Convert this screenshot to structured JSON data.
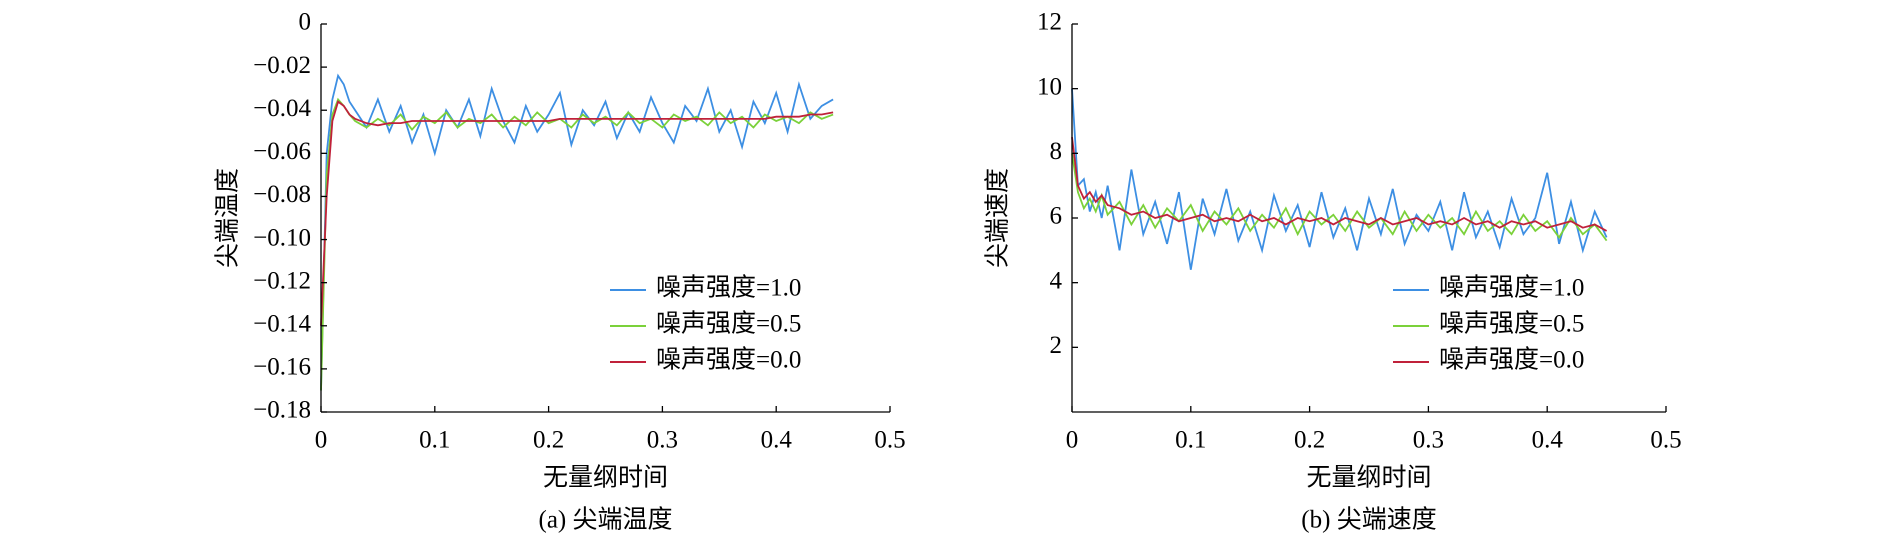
{
  "chart_data": [
    {
      "type": "line",
      "xlabel": "无量纲时间",
      "ylabel": "尖端温度",
      "caption": "(a) 尖端温度",
      "xlim": [
        0,
        0.5
      ],
      "ylim": [
        -0.18,
        0
      ],
      "xticks": [
        0,
        0.1,
        0.2,
        0.3,
        0.4,
        0.5
      ],
      "yticks": [
        {
          "value": -0.18,
          "label": "−0.18"
        },
        {
          "value": -0.16,
          "label": "−0.16"
        },
        {
          "value": -0.14,
          "label": "−0.14"
        },
        {
          "value": -0.12,
          "label": "−0.12"
        },
        {
          "value": -0.1,
          "label": "−0.10"
        },
        {
          "value": -0.08,
          "label": "−0.08"
        },
        {
          "value": -0.06,
          "label": "−0.06"
        },
        {
          "value": -0.04,
          "label": "−0.04"
        },
        {
          "value": -0.02,
          "label": "−0.02"
        },
        0
      ],
      "legend": "lower right",
      "x": [
        0,
        0.005,
        0.01,
        0.015,
        0.02,
        0.025,
        0.03,
        0.04,
        0.05,
        0.06,
        0.07,
        0.08,
        0.09,
        0.1,
        0.11,
        0.12,
        0.13,
        0.14,
        0.15,
        0.16,
        0.17,
        0.18,
        0.19,
        0.2,
        0.21,
        0.22,
        0.23,
        0.24,
        0.25,
        0.26,
        0.27,
        0.28,
        0.29,
        0.3,
        0.31,
        0.32,
        0.33,
        0.34,
        0.35,
        0.36,
        0.37,
        0.38,
        0.39,
        0.4,
        0.41,
        0.42,
        0.43,
        0.44,
        0.45
      ],
      "series": [
        {
          "name": "噪声强度=1.0",
          "color": "#3d8fe3",
          "values": [
            -0.17,
            -0.06,
            -0.035,
            -0.024,
            -0.028,
            -0.036,
            -0.04,
            -0.048,
            -0.035,
            -0.05,
            -0.038,
            -0.055,
            -0.042,
            -0.06,
            -0.04,
            -0.048,
            -0.035,
            -0.052,
            -0.03,
            -0.045,
            -0.055,
            -0.038,
            -0.05,
            -0.042,
            -0.032,
            -0.056,
            -0.04,
            -0.047,
            -0.036,
            -0.053,
            -0.041,
            -0.05,
            -0.034,
            -0.046,
            -0.055,
            -0.038,
            -0.045,
            -0.03,
            -0.05,
            -0.04,
            -0.057,
            -0.036,
            -0.046,
            -0.032,
            -0.05,
            -0.028,
            -0.044,
            -0.038,
            -0.035
          ]
        },
        {
          "name": "噪声强度=0.5",
          "color": "#7bd13a",
          "values": [
            -0.17,
            -0.07,
            -0.042,
            -0.035,
            -0.038,
            -0.042,
            -0.045,
            -0.048,
            -0.044,
            -0.047,
            -0.042,
            -0.049,
            -0.043,
            -0.046,
            -0.041,
            -0.048,
            -0.044,
            -0.046,
            -0.042,
            -0.048,
            -0.043,
            -0.047,
            -0.041,
            -0.046,
            -0.044,
            -0.048,
            -0.042,
            -0.046,
            -0.043,
            -0.047,
            -0.041,
            -0.046,
            -0.044,
            -0.048,
            -0.042,
            -0.045,
            -0.043,
            -0.047,
            -0.041,
            -0.046,
            -0.043,
            -0.048,
            -0.042,
            -0.045,
            -0.043,
            -0.046,
            -0.041,
            -0.044,
            -0.042
          ]
        },
        {
          "name": "噪声强度=0.0",
          "color": "#c0213a",
          "values": [
            -0.14,
            -0.08,
            -0.045,
            -0.036,
            -0.038,
            -0.042,
            -0.044,
            -0.046,
            -0.047,
            -0.046,
            -0.046,
            -0.045,
            -0.045,
            -0.045,
            -0.045,
            -0.045,
            -0.045,
            -0.045,
            -0.045,
            -0.045,
            -0.045,
            -0.045,
            -0.045,
            -0.045,
            -0.044,
            -0.044,
            -0.044,
            -0.044,
            -0.044,
            -0.044,
            -0.044,
            -0.044,
            -0.044,
            -0.044,
            -0.044,
            -0.044,
            -0.044,
            -0.044,
            -0.044,
            -0.044,
            -0.044,
            -0.044,
            -0.044,
            -0.043,
            -0.043,
            -0.043,
            -0.042,
            -0.042,
            -0.041
          ]
        }
      ]
    },
    {
      "type": "line",
      "xlabel": "无量纲时间",
      "ylabel": "尖端速度",
      "caption": "(b) 尖端速度",
      "xlim": [
        0,
        0.5
      ],
      "ylim": [
        0,
        12
      ],
      "xticks": [
        0,
        0.1,
        0.2,
        0.3,
        0.4,
        0.5
      ],
      "yticks": [
        2,
        4,
        6,
        8,
        10,
        12
      ],
      "legend": "lower right",
      "x": [
        0,
        0.005,
        0.01,
        0.015,
        0.02,
        0.025,
        0.03,
        0.04,
        0.05,
        0.06,
        0.07,
        0.08,
        0.09,
        0.1,
        0.11,
        0.12,
        0.13,
        0.14,
        0.15,
        0.16,
        0.17,
        0.18,
        0.19,
        0.2,
        0.21,
        0.22,
        0.23,
        0.24,
        0.25,
        0.26,
        0.27,
        0.28,
        0.29,
        0.3,
        0.31,
        0.32,
        0.33,
        0.34,
        0.35,
        0.36,
        0.37,
        0.38,
        0.39,
        0.4,
        0.41,
        0.42,
        0.43,
        0.44,
        0.45
      ],
      "series": [
        {
          "name": "噪声强度=1.0",
          "color": "#3d8fe3",
          "values": [
            10,
            7.0,
            7.2,
            6.2,
            6.8,
            6.0,
            7.0,
            5.0,
            7.5,
            5.5,
            6.5,
            5.2,
            6.8,
            4.4,
            6.6,
            5.5,
            6.9,
            5.3,
            6.2,
            5.0,
            6.7,
            5.6,
            6.4,
            5.1,
            6.8,
            5.4,
            6.3,
            5.0,
            6.6,
            5.5,
            6.9,
            5.2,
            6.1,
            5.6,
            6.5,
            5.0,
            6.8,
            5.4,
            6.2,
            5.1,
            6.6,
            5.5,
            6.0,
            7.4,
            5.2,
            6.5,
            5.0,
            6.2,
            5.4
          ]
        },
        {
          "name": "噪声强度=0.5",
          "color": "#7bd13a",
          "values": [
            8.0,
            6.8,
            6.3,
            6.6,
            6.2,
            6.7,
            6.1,
            6.5,
            5.8,
            6.4,
            5.7,
            6.3,
            5.9,
            6.4,
            5.6,
            6.2,
            5.8,
            6.3,
            5.6,
            6.1,
            5.7,
            6.3,
            5.5,
            6.2,
            5.8,
            6.1,
            5.6,
            6.2,
            5.7,
            6.0,
            5.5,
            6.2,
            5.6,
            6.1,
            5.7,
            6.0,
            5.5,
            6.2,
            5.6,
            5.9,
            5.5,
            6.1,
            5.6,
            5.9,
            5.4,
            6.0,
            5.5,
            5.8,
            5.3
          ]
        },
        {
          "name": "噪声强度=0.0",
          "color": "#c0213a",
          "values": [
            8.5,
            7.0,
            6.6,
            6.8,
            6.5,
            6.7,
            6.4,
            6.3,
            6.1,
            6.2,
            6.0,
            6.1,
            5.9,
            6.0,
            6.1,
            5.9,
            6.0,
            5.9,
            6.1,
            5.9,
            6.0,
            5.8,
            6.0,
            5.9,
            6.0,
            5.8,
            6.0,
            5.9,
            5.8,
            6.0,
            5.8,
            5.9,
            6.0,
            5.8,
            5.9,
            5.8,
            6.0,
            5.8,
            5.9,
            5.7,
            5.9,
            5.8,
            5.9,
            5.7,
            5.8,
            5.9,
            5.7,
            5.8,
            5.6
          ]
        }
      ]
    }
  ]
}
